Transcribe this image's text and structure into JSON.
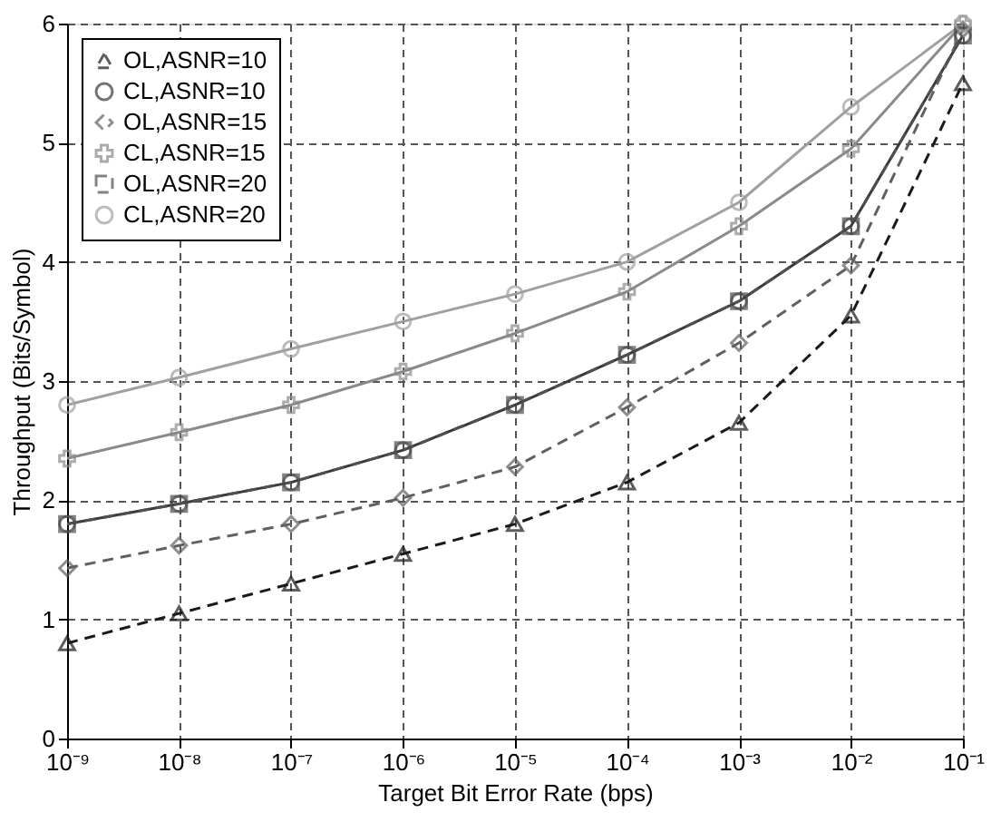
{
  "chart_data": {
    "type": "line",
    "xlabel": "Target Bit Error Rate (bps)",
    "ylabel": "Throughput (Bits/Symbol)",
    "log": "x",
    "x": [
      1e-09,
      1e-08,
      1e-07,
      1e-06,
      1e-05,
      0.0001,
      0.001,
      0.01,
      0.1
    ],
    "xlim": [
      1e-09,
      0.1
    ],
    "xticks": [
      {
        "value": 1e-09,
        "label": "10⁻⁹"
      },
      {
        "value": 1e-08,
        "label": "10⁻⁸"
      },
      {
        "value": 1e-07,
        "label": "10⁻⁷"
      },
      {
        "value": 1e-06,
        "label": "10⁻⁶"
      },
      {
        "value": 1e-05,
        "label": "10⁻⁵"
      },
      {
        "value": 0.0001,
        "label": "10⁻⁴"
      },
      {
        "value": 0.001,
        "label": "10⁻³"
      },
      {
        "value": 0.01,
        "label": "10⁻²"
      },
      {
        "value": 0.1,
        "label": "10⁻¹"
      }
    ],
    "ylim": [
      0,
      6
    ],
    "yticks": [
      0,
      1,
      2,
      3,
      4,
      5,
      6
    ],
    "grid": true,
    "legend": "top left",
    "series": [
      {
        "name": "OL,ASNR=10",
        "color": "#1a1a1a",
        "line_style": "dashed",
        "marker": "triangle",
        "values": [
          0.8,
          1.05,
          1.3,
          1.55,
          1.8,
          2.15,
          2.65,
          3.55,
          5.5
        ]
      },
      {
        "name": "CL,ASNR=10",
        "color": "#3a3a3a",
        "line_style": "solid",
        "marker": "circle",
        "values": [
          1.8,
          1.97,
          2.15,
          2.42,
          2.8,
          3.22,
          3.67,
          4.3,
          5.9
        ]
      },
      {
        "name": "OL,ASNR=15",
        "color": "#606060",
        "line_style": "dashed",
        "marker": "diamond",
        "values": [
          1.43,
          1.62,
          1.8,
          2.02,
          2.28,
          2.78,
          3.32,
          3.97,
          5.95
        ]
      },
      {
        "name": "CL,ASNR=15",
        "color": "#8a8a8a",
        "line_style": "solid",
        "marker": "cross",
        "values": [
          2.35,
          2.57,
          2.8,
          3.08,
          3.4,
          3.75,
          4.3,
          4.95,
          6.0
        ]
      },
      {
        "name": "OL,ASNR=20",
        "color": "#505050",
        "line_style": "dashed",
        "marker": "square",
        "values": [
          1.8,
          1.97,
          2.15,
          2.42,
          2.8,
          3.22,
          3.67,
          4.3,
          5.9
        ]
      },
      {
        "name": "CL,ASNR=20",
        "color": "#a0a0a0",
        "line_style": "solid",
        "marker": "circle",
        "values": [
          2.8,
          3.03,
          3.27,
          3.5,
          3.73,
          4.0,
          4.5,
          5.3,
          6.0
        ]
      }
    ]
  }
}
